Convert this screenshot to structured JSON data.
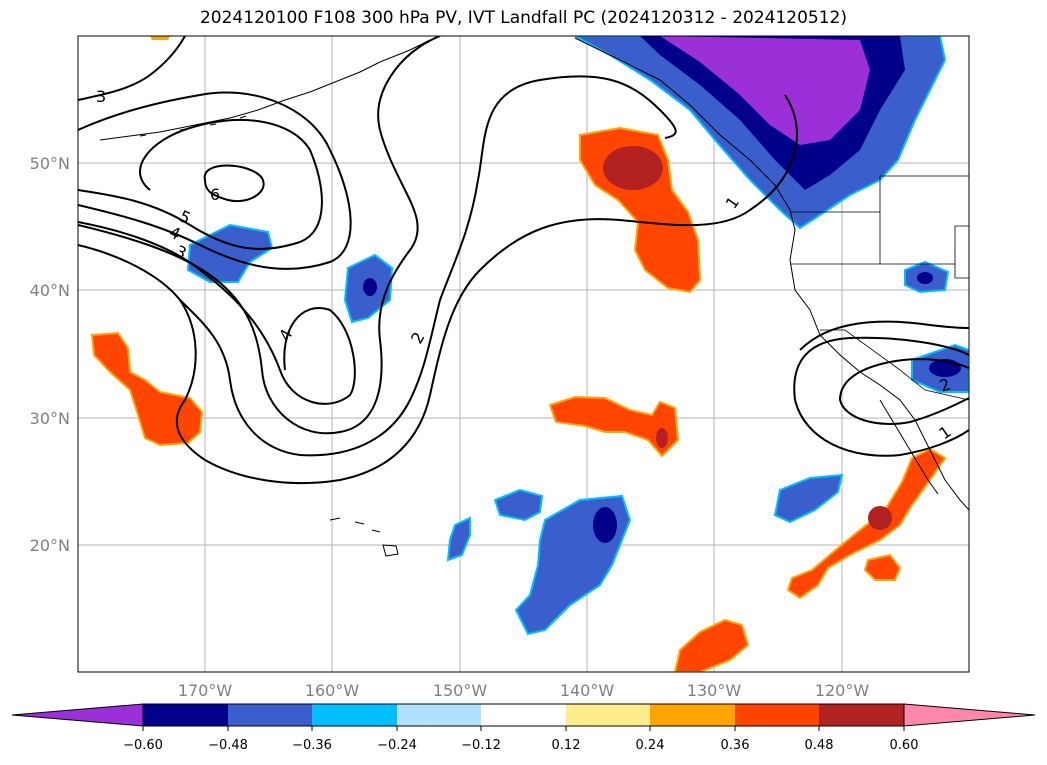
{
  "title": "2024120100 F108 300 hPa PV, IVT Landfall PC (2024120312 - 2024120512)",
  "map": {
    "lat_labels": [
      "50°N",
      "40°N",
      "30°N",
      "20°N"
    ],
    "lon_labels": [
      "170°W",
      "160°W",
      "150°W",
      "140°W",
      "130°W",
      "120°W"
    ],
    "contour_labels": [
      "3",
      "6",
      "5",
      "4",
      "3",
      "4",
      "2",
      "1",
      "2",
      "1"
    ]
  },
  "colorbar": {
    "colors": [
      "#9b30d9",
      "#00008b",
      "#3a5fcd",
      "#00bfff",
      "#b0e2ff",
      "#ffffff",
      "#ffec8b",
      "#ffa500",
      "#ff4500",
      "#b22222",
      "#ff88aa"
    ],
    "tick_labels": [
      "−0.60",
      "−0.48",
      "−0.36",
      "−0.24",
      "−0.12",
      "0.12",
      "0.24",
      "0.36",
      "0.48",
      "0.60"
    ]
  }
}
